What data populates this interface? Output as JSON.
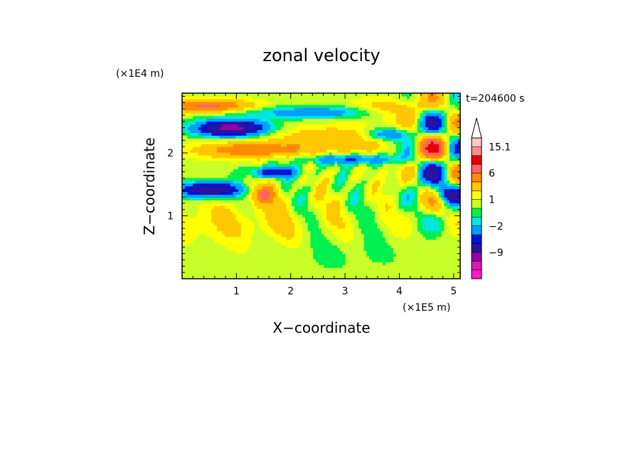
{
  "chart_data": {
    "type": "heatmap",
    "title": "zonal velocity",
    "xlabel": "X−coordinate",
    "ylabel": "Z−coordinate",
    "x_multiplier": "(×1E5 m)",
    "y_multiplier": "(×1E4 m)",
    "time_label": "t=204600 s",
    "xlim": [
      0,
      5.12
    ],
    "ylim": [
      0,
      2.95
    ],
    "x_ticks": [
      1,
      2,
      3,
      4,
      5
    ],
    "x_tick_labels": [
      "1",
      "2",
      "3",
      "4",
      "5"
    ],
    "y_ticks": [
      1,
      2
    ],
    "y_tick_labels": [
      "1",
      "2"
    ],
    "colorbar": {
      "levels": [
        -15.1,
        -12,
        -9,
        -6,
        -4,
        -2,
        -1,
        0,
        1,
        2,
        4,
        6,
        9,
        12,
        15.1
      ],
      "colors": [
        "#ff19c8",
        "#d21eb4",
        "#9600a5",
        "#2814a0",
        "#0014d2",
        "#00a0ff",
        "#00e6e6",
        "#00f050",
        "#c8ff28",
        "#ffff00",
        "#ffc800",
        "#ff8c00",
        "#ff6464",
        "#e60000",
        "#ff8c8c",
        "#ffc8c8"
      ],
      "tick_labels": [
        "15.1",
        "6",
        "1",
        "−2",
        "−9"
      ],
      "extend": "max"
    },
    "data_summary": "2D contour field of zonal velocity over x = 0–5.12×10^5 m and z = 0–2.95×10^4 m; alternating positive (yellow/orange, up to ~15 m/s) and negative (blue, down to ~−12 m/s) bands above ~1.2×10^4 m with wave structure near x ≈ 4.5–5×10^5 m; mostly weak values (green/yellow) near the surface."
  }
}
